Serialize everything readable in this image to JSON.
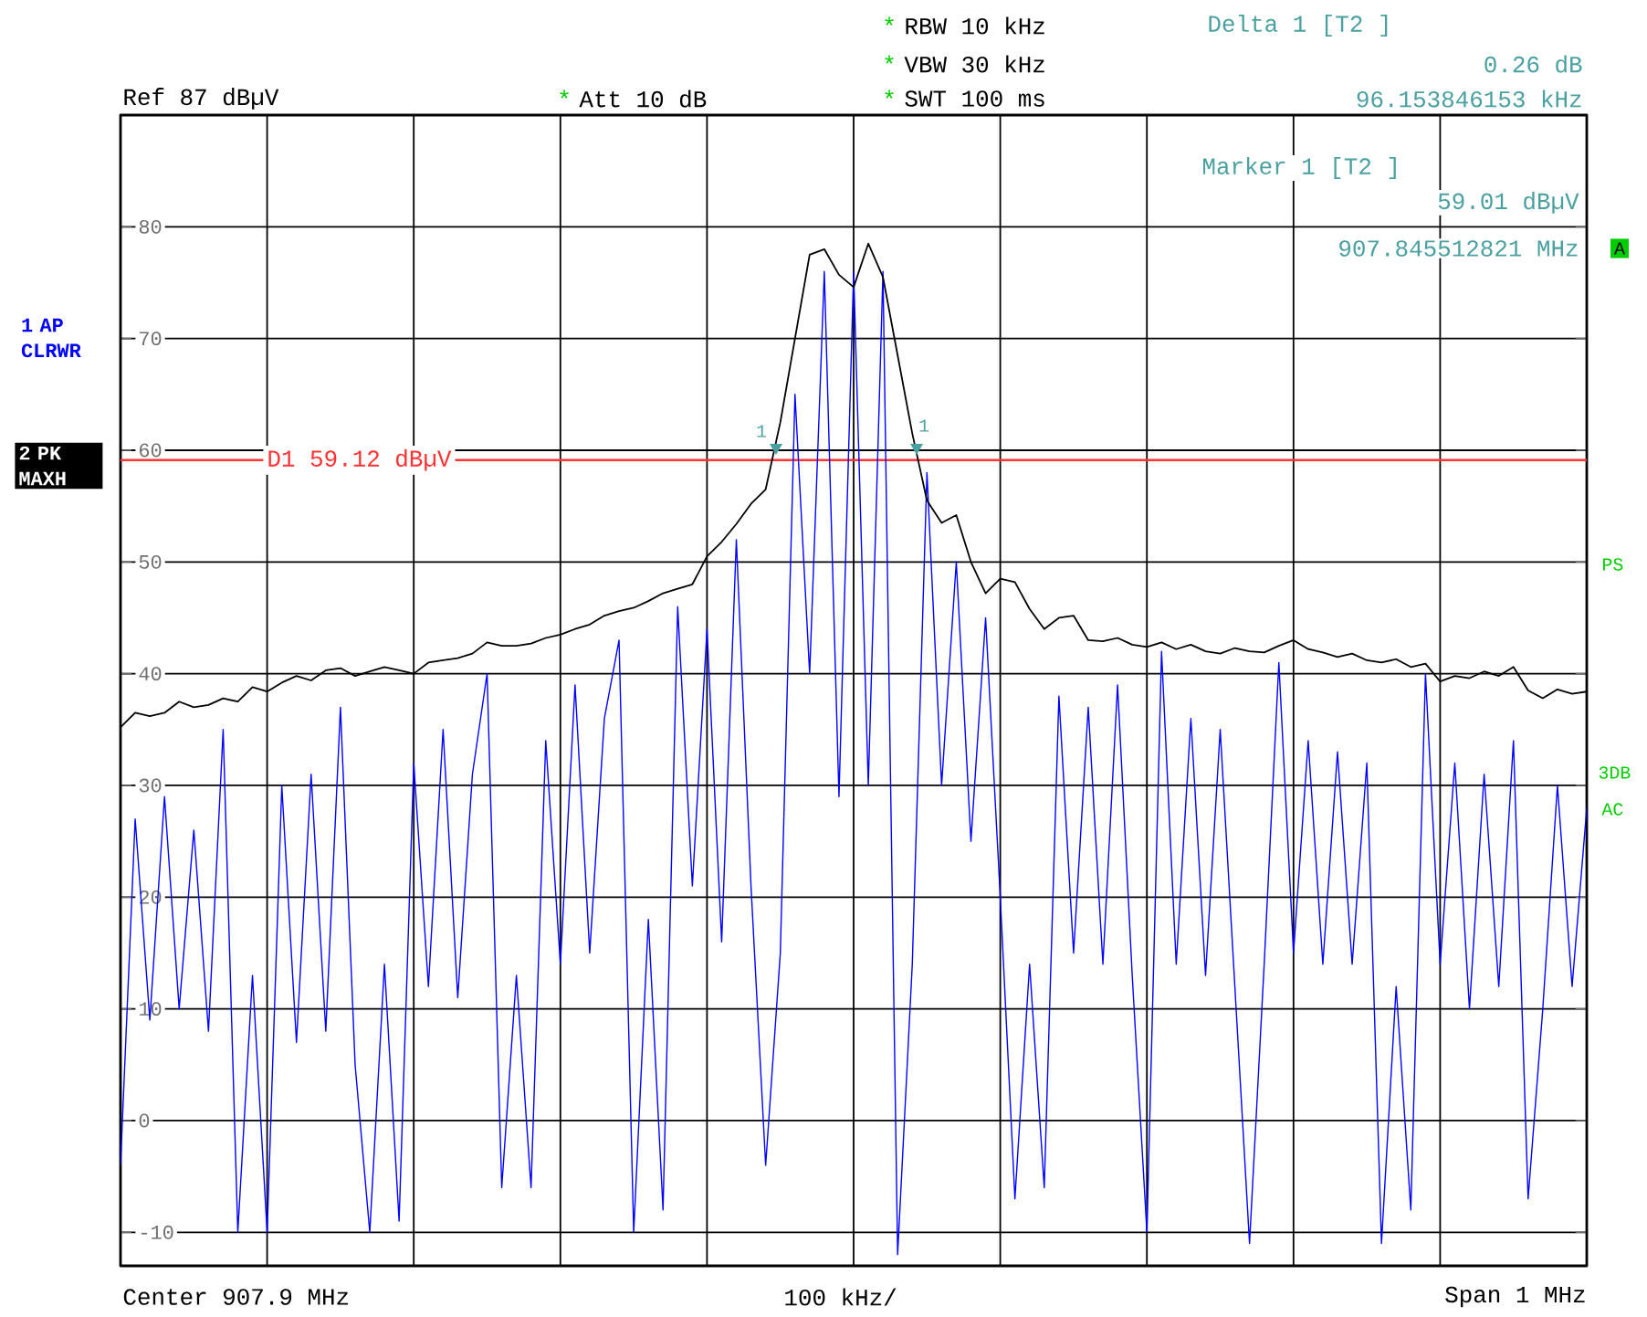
{
  "chart_data": {
    "type": "line",
    "categories": [
      null,
      null,
      null,
      null,
      null,
      null,
      null,
      null,
      null,
      null,
      null,
      null,
      null,
      null,
      null,
      null,
      null,
      null,
      null,
      null,
      null,
      null,
      null,
      null,
      null,
      null,
      null,
      null,
      null,
      null,
      null,
      null,
      null,
      null,
      null,
      null,
      null,
      null,
      null,
      null,
      null,
      null,
      null,
      null,
      null,
      null,
      null,
      null,
      null,
      null,
      null,
      null,
      null,
      null,
      null,
      null,
      null,
      null,
      null,
      null,
      null,
      null,
      null,
      null,
      null,
      null,
      null,
      null,
      null,
      null,
      null,
      null,
      null,
      null,
      null,
      null,
      null,
      null,
      null,
      null,
      null,
      null,
      null,
      null,
      null,
      null,
      null,
      null,
      null,
      null,
      null,
      null,
      null,
      null,
      null,
      null,
      null,
      null,
      null,
      null,
      null
    ],
    "ylim": [
      -13,
      90
    ],
    "yticks": [
      -10,
      0,
      10,
      20,
      30,
      40,
      50,
      60,
      70,
      80
    ],
    "tick_labels": "y",
    "grid": true,
    "legend": "left",
    "marker": "none",
    "line_style": "solid",
    "series": [
      {
        "name": "1 AP CLRWR",
        "color": "#0000ff",
        "values": [
          -4,
          27,
          9,
          29,
          10,
          26,
          8,
          35,
          -10,
          13,
          -10,
          30,
          7,
          31,
          8,
          37,
          5,
          -10,
          14,
          -9,
          32,
          12,
          35,
          11,
          31,
          40,
          -6,
          13,
          -6,
          34,
          14,
          39,
          15,
          36,
          43,
          -10,
          18,
          -8,
          46,
          21,
          44,
          16,
          52,
          21,
          -4,
          15,
          65,
          40,
          76,
          29,
          76,
          30,
          76,
          -12,
          14,
          58,
          30,
          50,
          25,
          45,
          20,
          -7,
          14,
          -6,
          38,
          15,
          37,
          14,
          39,
          13,
          -10,
          42,
          14,
          36,
          13,
          35,
          12,
          -11,
          14,
          41,
          15,
          34,
          14,
          33,
          14,
          32,
          -11,
          12,
          -8,
          40,
          14,
          32,
          10,
          31,
          12,
          34,
          -7,
          10,
          30,
          12,
          28
        ]
      },
      {
        "name": "2 PK MAXH",
        "color": "#000000",
        "values": [
          35.2,
          36.5,
          36.2,
          36.5,
          37.5,
          37.0,
          37.2,
          37.8,
          37.5,
          38.8,
          38.4,
          39.2,
          39.8,
          39.4,
          40.3,
          40.5,
          39.8,
          40.2,
          40.6,
          40.3,
          40.0,
          41.0,
          41.2,
          41.4,
          41.8,
          42.8,
          42.5,
          42.5,
          42.7,
          43.2,
          43.5,
          44.0,
          44.4,
          45.2,
          45.6,
          45.9,
          46.5,
          47.2,
          47.6,
          48.0,
          50.5,
          51.8,
          53.4,
          55.2,
          56.5,
          62.5,
          70.0,
          77.5,
          78.0,
          75.7,
          74.6,
          78.5,
          75.5,
          68.5,
          61.5,
          55.5,
          53.5,
          54.2,
          50.0,
          47.2,
          48.5,
          48.2,
          45.8,
          44.0,
          45.0,
          45.2,
          43.0,
          42.9,
          43.2,
          42.6,
          42.4,
          42.8,
          42.2,
          42.6,
          42.0,
          41.8,
          42.3,
          42.0,
          41.9,
          42.5,
          43.0,
          42.2,
          41.9,
          41.5,
          41.8,
          41.2,
          41.0,
          41.3,
          40.6,
          40.9,
          39.3,
          39.8,
          39.6,
          40.2,
          39.8,
          40.6,
          38.5,
          37.8,
          38.6,
          38.2,
          38.4
        ]
      }
    ],
    "ref_lines": [
      {
        "axis": "y",
        "value": 59.12,
        "label": "D1 59.12 dBµV",
        "color": "#ff3333"
      }
    ],
    "annotations": [
      "*",
      "RBW 10 kHz",
      "*",
      "VBW 30 kHz",
      "*",
      "SWT 100 ms",
      "Ref 87 dBµV",
      "*",
      "Att 10 dB",
      "Delta 1 [T2 ]",
      "0.26 dB",
      "96.153846153 kHz",
      "Marker 1 [T2 ]",
      "59.01 dBµV",
      "907.845512821 MHz",
      "A",
      "PS",
      "3DB",
      "AC",
      "Center 907.9 MHz",
      "100 kHz/",
      "Span 1 MHz",
      "1",
      "1"
    ]
  }
}
